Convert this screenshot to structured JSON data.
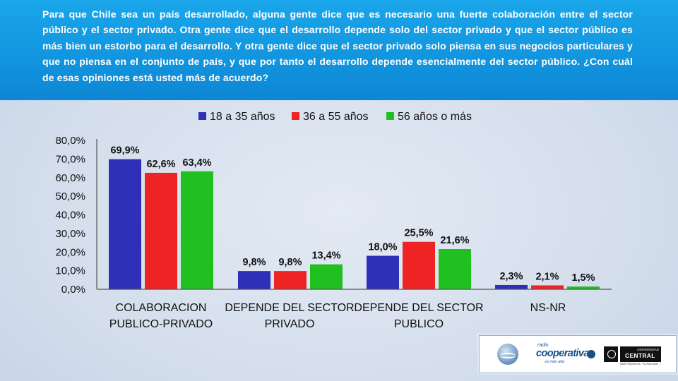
{
  "question": "Para que Chile sea un país desarrollado, alguna gente dice que es necesario una fuerte colaboración entre el sector público y el sector privado. Otra gente dice que el desarrollo depende solo del sector privado y que el sector público es más bien un estorbo para el desarrollo. Y otra gente dice que el sector privado solo piensa en sus negocios particulares y que no piensa en el conjunto de país, y que por tanto el desarrollo depende esencialmente del sector público. ¿Con cuál de esas opiniones está usted más de acuerdo?",
  "chart_data": {
    "type": "bar",
    "title": "",
    "xlabel": "",
    "ylabel": "",
    "categories": [
      [
        "COLABORACION",
        "PUBLICO-PRIVADO"
      ],
      [
        "DEPENDE DEL SECTOR",
        "PRIVADO"
      ],
      [
        "DEPENDE DEL SECTOR",
        "PUBLICO"
      ],
      [
        "NS-NR"
      ]
    ],
    "series": [
      {
        "name": "18 a 35 años",
        "color": "#2e30b8",
        "values": [
          69.9,
          9.8,
          18.0,
          2.3
        ],
        "labels": [
          "69,9%",
          "9,8%",
          "18,0%",
          "2,3%"
        ]
      },
      {
        "name": "36 a 55 años",
        "color": "#ee2424",
        "values": [
          62.6,
          9.8,
          25.5,
          2.1
        ],
        "labels": [
          "62,6%",
          "9,8%",
          "25,5%",
          "2,1%"
        ]
      },
      {
        "name": "56 años o más",
        "color": "#20c020",
        "values": [
          63.4,
          13.4,
          21.6,
          1.5
        ],
        "labels": [
          "63,4%",
          "13,4%",
          "21,6%",
          "1,5%"
        ]
      }
    ],
    "ylim": [
      0,
      80
    ],
    "yticks": [
      "0,0%",
      "10,0%",
      "20,0%",
      "30,0%",
      "40,0%",
      "50,0%",
      "60,0%",
      "70,0%",
      "80,0%"
    ],
    "legend_position": "top",
    "grid": false
  },
  "logos": {
    "coop_small": "radio",
    "coop_main": "cooperativa",
    "coop_sub": "va más allá",
    "ucen_small": "UNIVERSIDAD",
    "ucen_main": "CENTRAL",
    "ucen_tag": "INDEPENDENCIA · PLURALISMO · COMPROMISO"
  }
}
